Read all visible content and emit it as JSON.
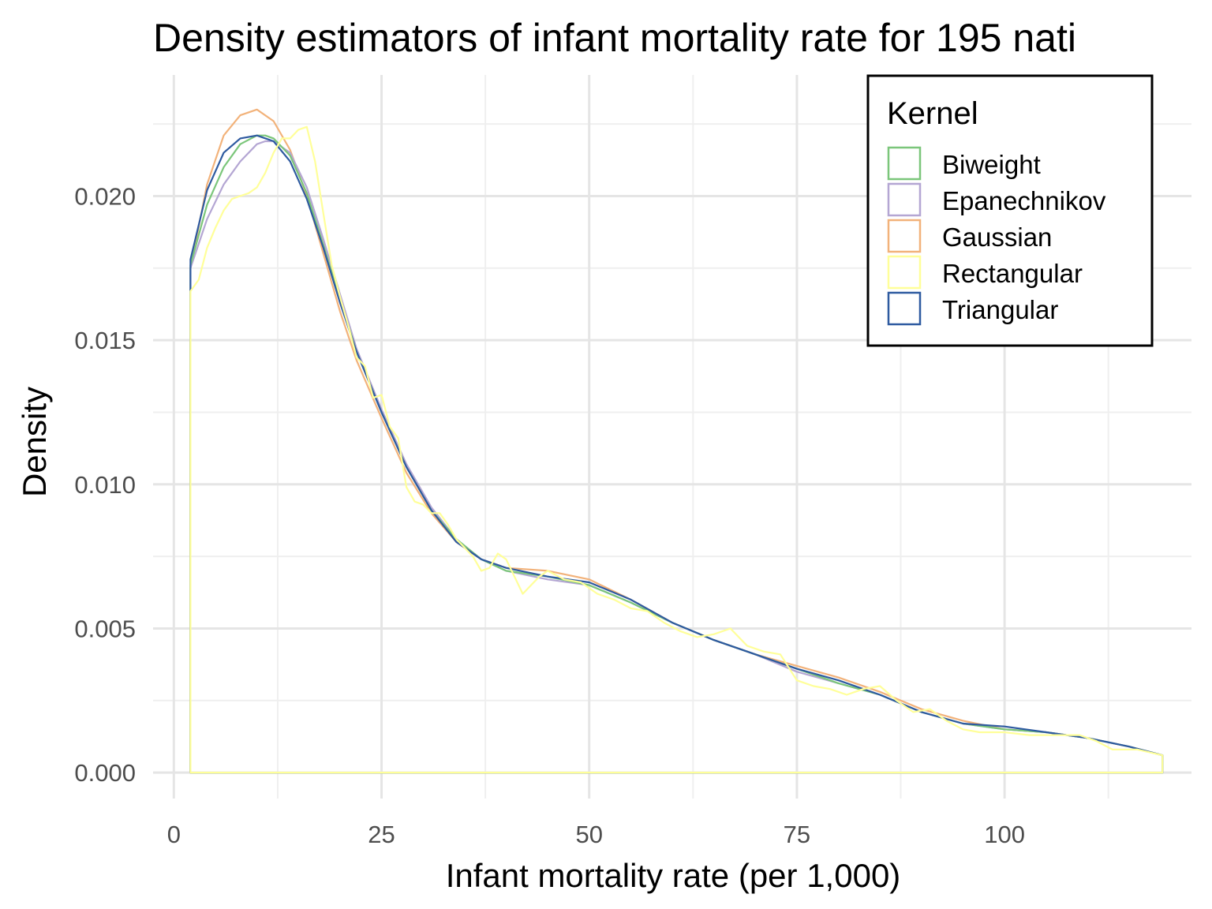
{
  "chart_data": {
    "type": "line",
    "title": "Density estimators of infant mortality rate for 195 nati",
    "xlabel": "Infant mortality rate (per 1,000)",
    "ylabel": "Density",
    "xlim": [
      -2.5,
      122.5
    ],
    "ylim": [
      -0.0009,
      0.0242
    ],
    "x_ticks": [
      0,
      25,
      50,
      75,
      100
    ],
    "x_tick_labels": [
      "0",
      "25",
      "50",
      "75",
      "100"
    ],
    "y_ticks": [
      0.0,
      0.005,
      0.01,
      0.015,
      0.02
    ],
    "y_tick_labels": [
      "0.000",
      "0.005",
      "0.010",
      "0.015",
      "0.020"
    ],
    "grid": true,
    "legend": {
      "title": "Kernel",
      "position": "top-right",
      "entries": [
        "Biweight",
        "Epanechnikov",
        "Gaussian",
        "Rectangular",
        "Triangular"
      ]
    },
    "data_range": [
      2.0,
      119.0
    ],
    "series": [
      {
        "name": "Gaussian",
        "color": "#f2b27a",
        "x": [
          2,
          4,
          6,
          8,
          10,
          12,
          14,
          16,
          18,
          20,
          22,
          25,
          28,
          31,
          34,
          37,
          40,
          45,
          50,
          55,
          60,
          65,
          70,
          75,
          80,
          85,
          90,
          95,
          100,
          105,
          110,
          115,
          119
        ],
        "y": [
          0.0175,
          0.0204,
          0.0221,
          0.0228,
          0.023,
          0.0226,
          0.0216,
          0.02,
          0.018,
          0.016,
          0.0143,
          0.0123,
          0.0104,
          0.009,
          0.008,
          0.0074,
          0.0071,
          0.007,
          0.0067,
          0.006,
          0.0052,
          0.0046,
          0.0041,
          0.0037,
          0.0033,
          0.0028,
          0.0022,
          0.0018,
          0.0015,
          0.0014,
          0.0012,
          0.0009,
          0.0006
        ]
      },
      {
        "name": "Epanechnikov",
        "color": "#b4a6d3",
        "x": [
          2,
          4,
          6,
          8,
          10,
          11,
          12,
          14,
          16,
          18,
          20,
          22,
          25,
          28,
          31,
          34,
          37,
          40,
          45,
          50,
          55,
          60,
          65,
          70,
          75,
          80,
          85,
          90,
          95,
          100,
          105,
          110,
          115,
          119
        ],
        "y": [
          0.0175,
          0.0192,
          0.0204,
          0.0212,
          0.0218,
          0.0219,
          0.0219,
          0.0215,
          0.0203,
          0.0185,
          0.0166,
          0.0147,
          0.0126,
          0.0107,
          0.0092,
          0.0081,
          0.0074,
          0.007,
          0.0067,
          0.0065,
          0.0059,
          0.0052,
          0.0046,
          0.0041,
          0.0035,
          0.0031,
          0.0027,
          0.0021,
          0.0017,
          0.0015,
          0.0014,
          0.0012,
          0.0009,
          0.0006
        ]
      },
      {
        "name": "Biweight",
        "color": "#7bc67a",
        "x": [
          2,
          4,
          6,
          8,
          10,
          11,
          12,
          14,
          16,
          18,
          20,
          22,
          25,
          28,
          31,
          34,
          37,
          40,
          45,
          50,
          55,
          60,
          65,
          70,
          75,
          80,
          85,
          90,
          95,
          100,
          105,
          110,
          115,
          119
        ],
        "y": [
          0.0176,
          0.0197,
          0.021,
          0.0218,
          0.0221,
          0.0221,
          0.022,
          0.0214,
          0.0201,
          0.0183,
          0.0164,
          0.0146,
          0.0125,
          0.0106,
          0.0091,
          0.0081,
          0.0074,
          0.007,
          0.0068,
          0.0065,
          0.0059,
          0.0052,
          0.0046,
          0.0041,
          0.0036,
          0.0031,
          0.0027,
          0.0021,
          0.0017,
          0.0015,
          0.0014,
          0.0012,
          0.0009,
          0.0006
        ]
      },
      {
        "name": "Triangular",
        "color": "#2e5aa0",
        "x": [
          2,
          4,
          6,
          8,
          10,
          12,
          14,
          16,
          18,
          20,
          22,
          25,
          28,
          31,
          34,
          37,
          40,
          45,
          50,
          55,
          60,
          65,
          70,
          75,
          80,
          85,
          90,
          95,
          100,
          105,
          110,
          115,
          119
        ],
        "y": [
          0.0178,
          0.0202,
          0.0215,
          0.022,
          0.0221,
          0.0219,
          0.0212,
          0.0199,
          0.0182,
          0.0163,
          0.0146,
          0.0125,
          0.0106,
          0.0091,
          0.008,
          0.0074,
          0.0071,
          0.0068,
          0.0066,
          0.006,
          0.0052,
          0.0046,
          0.0041,
          0.0036,
          0.0032,
          0.0027,
          0.0021,
          0.0017,
          0.0016,
          0.0014,
          0.0012,
          0.0009,
          0.0006
        ]
      },
      {
        "name": "Rectangular",
        "color": "#ffff99",
        "x": [
          2,
          3,
          4,
          5,
          6,
          7,
          8,
          9,
          10,
          11,
          12,
          13,
          14,
          15,
          16,
          17,
          18,
          19,
          20,
          21,
          22,
          23,
          24,
          25,
          26,
          27,
          28,
          29,
          30,
          31,
          32,
          33,
          34,
          35,
          36,
          37,
          38,
          39,
          40,
          41,
          42,
          43,
          44,
          45,
          47,
          49,
          51,
          53,
          55,
          57,
          59,
          61,
          63,
          65,
          67,
          69,
          71,
          73,
          75,
          77,
          79,
          81,
          83,
          85,
          87,
          89,
          91,
          93,
          95,
          97,
          100,
          103,
          106,
          109,
          111,
          113,
          116,
          119
        ],
        "y": [
          0.0167,
          0.0171,
          0.0182,
          0.0189,
          0.0195,
          0.0199,
          0.02,
          0.0201,
          0.0203,
          0.0208,
          0.0215,
          0.022,
          0.022,
          0.0223,
          0.0224,
          0.0212,
          0.0194,
          0.0176,
          0.0165,
          0.0155,
          0.0144,
          0.0141,
          0.013,
          0.0131,
          0.012,
          0.0116,
          0.0099,
          0.0094,
          0.0093,
          0.009,
          0.009,
          0.0086,
          0.0081,
          0.0078,
          0.0075,
          0.007,
          0.0071,
          0.0076,
          0.0074,
          0.0068,
          0.0062,
          0.0065,
          0.0068,
          0.007,
          0.0067,
          0.0066,
          0.0062,
          0.006,
          0.0057,
          0.0056,
          0.0052,
          0.0049,
          0.0047,
          0.0048,
          0.005,
          0.0044,
          0.0042,
          0.0041,
          0.0032,
          0.003,
          0.0029,
          0.0027,
          0.0029,
          0.003,
          0.0025,
          0.0021,
          0.0022,
          0.0018,
          0.0015,
          0.0014,
          0.0014,
          0.0013,
          0.0013,
          0.0013,
          0.0011,
          0.0008,
          0.0008,
          0.0006
        ]
      }
    ]
  }
}
